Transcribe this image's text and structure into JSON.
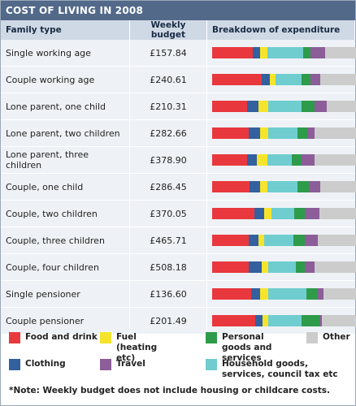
{
  "title": "COST OF LIVING IN 2008",
  "headers": {
    "family": "Family type",
    "budget": "Weekly budget",
    "breakdown": "Breakdown of expenditure"
  },
  "chart_data": {
    "type": "bar",
    "orientation": "horizontal-stacked-100",
    "categories": [
      "Single working age",
      "Couple working age",
      "Lone parent, one child",
      "Lone parent, two children",
      "Lone parent, three children",
      "Couple, one child",
      "Couple, two children",
      "Couple, three children",
      "Couple, four children",
      "Single pensioner",
      "Couple pensioner"
    ],
    "budgets": [
      "£157.84",
      "£240.61",
      "£210.31",
      "£282.66",
      "£378.90",
      "£286.45",
      "£370.05",
      "£465.71",
      "£508.18",
      "£136.60",
      "£201.49"
    ],
    "series": [
      {
        "name": "Food and drink",
        "color": "#e8383d",
        "values": [
          28,
          34,
          24,
          25,
          24,
          26,
          29,
          25,
          25,
          27,
          30
        ]
      },
      {
        "name": "Clothing",
        "color": "#33609e",
        "values": [
          5,
          6,
          8,
          8,
          7,
          7,
          7,
          7,
          9,
          6,
          5
        ]
      },
      {
        "name": "Fuel (heating etc)",
        "color": "#f5e42b",
        "values": [
          5,
          4,
          7,
          6,
          7,
          5,
          5,
          4,
          5,
          6,
          4
        ]
      },
      {
        "name": "Household goods, services, council tax etc",
        "color": "#6fcdd0",
        "values": [
          25,
          18,
          23,
          20,
          17,
          21,
          16,
          20,
          19,
          26,
          23
        ]
      },
      {
        "name": "Personal goods and services",
        "color": "#2e9b4a",
        "values": [
          5,
          6,
          9,
          7,
          7,
          8,
          7,
          8,
          6,
          8,
          12
        ]
      },
      {
        "name": "Travel",
        "color": "#8c5d99",
        "values": [
          10,
          7,
          8,
          5,
          9,
          8,
          10,
          9,
          7,
          4,
          2
        ]
      },
      {
        "name": "Other",
        "color": "#cccccc",
        "values": [
          22,
          25,
          21,
          29,
          29,
          25,
          26,
          27,
          29,
          23,
          24
        ]
      }
    ]
  },
  "legend": [
    {
      "label": "Food and drink",
      "color": "#e8383d"
    },
    {
      "label": "Fuel (heating etc)",
      "color": "#f5e42b"
    },
    {
      "label": "Personal goods and services",
      "color": "#2e9b4a"
    },
    {
      "label": "Other",
      "color": "#cccccc"
    },
    {
      "label": "Clothing",
      "color": "#33609e"
    },
    {
      "label": "Travel",
      "color": "#8c5d99"
    },
    {
      "label": "Household goods, services, council tax etc",
      "color": "#6fcdd0"
    }
  ],
  "note": "*Note: Weekly budget does not include housing or childcare costs."
}
